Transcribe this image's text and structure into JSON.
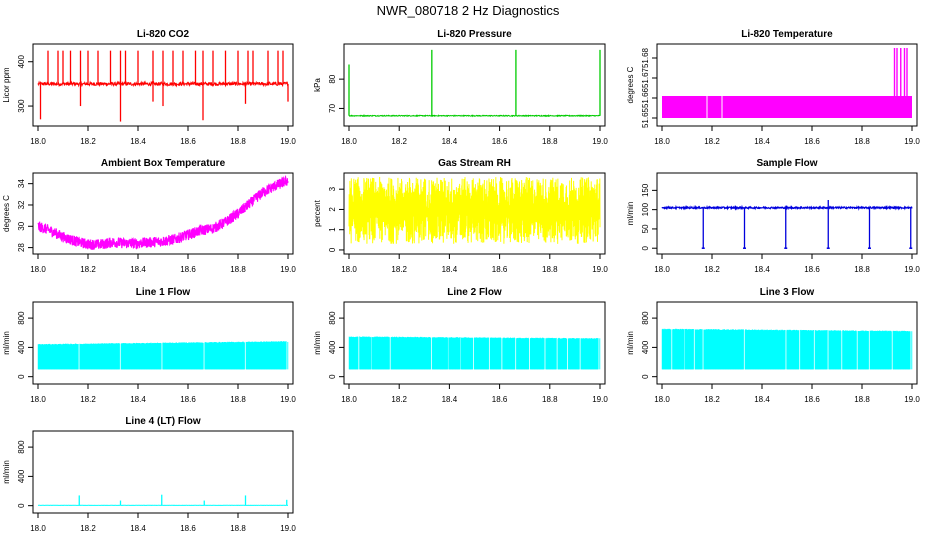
{
  "figure_title": "NWR_080718  2 Hz Diagnostics",
  "chart_data": [
    {
      "id": "li820-co2",
      "type": "line",
      "title": "Li-820 CO2",
      "ylabel": "Licor ppm",
      "color": "#ff0000",
      "xlim": [
        18.0,
        19.0
      ],
      "ylim": [
        255,
        440
      ],
      "xticks": [
        "18.0",
        "18.2",
        "18.4",
        "18.6",
        "18.8",
        "19.0"
      ],
      "yticks": [
        {
          "v": 300,
          "label": "300"
        },
        {
          "v": 400,
          "label": "400"
        }
      ],
      "summary": "Noisy baseline near 350 ppm with frequent spikes up to about 425 and drops to about 260",
      "baseline": 350,
      "noise": 4,
      "spike_x": [
        18.04,
        18.08,
        18.1,
        18.13,
        18.17,
        18.2,
        18.24,
        18.29,
        18.33,
        18.35,
        18.4,
        18.46,
        18.5,
        18.54,
        18.58,
        18.63,
        18.66,
        18.7,
        18.75,
        18.8,
        18.84,
        18.86,
        18.92,
        18.96,
        18.98
      ],
      "spike_hi": 425,
      "drop_x": [
        18.01,
        18.17,
        18.33,
        18.46,
        18.5,
        18.66,
        18.83,
        19.0
      ],
      "drop_lo": [
        270,
        300,
        265,
        310,
        300,
        268,
        305,
        310
      ]
    },
    {
      "id": "li820-pressure",
      "type": "line",
      "title": "Li-820 Pressure",
      "ylabel": "kPa",
      "color": "#00cc00",
      "xlim": [
        18.0,
        19.0
      ],
      "ylim": [
        64,
        92
      ],
      "xticks": [
        "18.0",
        "18.2",
        "18.4",
        "18.6",
        "18.8",
        "19.0"
      ],
      "yticks": [
        {
          "v": 70,
          "label": "70"
        },
        {
          "v": 80,
          "label": "80"
        }
      ],
      "summary": "Flat near 67.5 kPa with spikes to about 90 kPa",
      "baseline": 67.5,
      "noise": 0.15,
      "spike_x": [
        18.0,
        18.33,
        18.665,
        19.0
      ],
      "spike_hi": [
        85,
        90,
        90,
        90
      ]
    },
    {
      "id": "li820-temperature",
      "type": "area",
      "title": "Li-820 Temperature",
      "ylabel": "degrees C",
      "color": "#ff00ff",
      "xlim": [
        18.0,
        19.0
      ],
      "ylim": [
        51.646,
        51.687
      ],
      "xticks": [
        "18.0",
        "18.2",
        "18.4",
        "18.6",
        "18.8",
        "19.0"
      ],
      "yticks": [
        {
          "v": 51.65,
          "label": "51.65"
        },
        {
          "v": 51.66,
          "label": "51.66"
        },
        {
          "v": 51.67,
          "label": "51.67"
        },
        {
          "v": 51.68,
          "label": "51.68"
        }
      ],
      "summary": "Filled band between 51.65 and 51.661 with brief excursions to 51.685 near 18.93-18.98",
      "band_lo": 51.65,
      "band_hi": 51.661,
      "gaps": [
        18.18,
        18.24
      ],
      "spike_x": [
        18.93,
        18.94,
        18.955,
        18.97,
        18.98
      ],
      "spike_hi": 51.685
    },
    {
      "id": "ambient-box-temperature",
      "type": "line",
      "title": "Ambient Box Temperature",
      "ylabel": "degrees C",
      "color": "#ff00ff",
      "xlim": [
        18.0,
        19.0
      ],
      "ylim": [
        27.4,
        35.0
      ],
      "xticks": [
        "18.0",
        "18.2",
        "18.4",
        "18.6",
        "18.8",
        "19.0"
      ],
      "yticks": [
        {
          "v": 28,
          "label": "28"
        },
        {
          "v": 30,
          "label": "30"
        },
        {
          "v": 32,
          "label": "32"
        },
        {
          "v": 34,
          "label": "34"
        }
      ],
      "summary": "Dips from 30 to about 28.3, rises to 34.3 by 19.0",
      "x": [
        18.0,
        18.05,
        18.1,
        18.15,
        18.2,
        18.25,
        18.3,
        18.35,
        18.4,
        18.45,
        18.5,
        18.55,
        18.6,
        18.65,
        18.7,
        18.75,
        18.8,
        18.85,
        18.9,
        18.95,
        19.0
      ],
      "y": [
        30.0,
        29.6,
        29.0,
        28.6,
        28.3,
        28.3,
        28.5,
        28.4,
        28.4,
        28.5,
        28.6,
        28.8,
        29.2,
        29.6,
        29.8,
        30.4,
        31.2,
        32.2,
        33.2,
        33.8,
        34.3
      ],
      "noise": 0.5
    },
    {
      "id": "gas-stream-rh",
      "type": "area",
      "title": "Gas Stream RH",
      "ylabel": "percent",
      "color": "#ffff00",
      "xlim": [
        18.0,
        19.0
      ],
      "ylim": [
        -0.2,
        3.8
      ],
      "xticks": [
        "18.0",
        "18.2",
        "18.4",
        "18.6",
        "18.8",
        "19.0"
      ],
      "yticks": [
        {
          "v": 0,
          "label": "0"
        },
        {
          "v": 1,
          "label": "1"
        },
        {
          "v": 2,
          "label": "2"
        },
        {
          "v": 3,
          "label": "3"
        }
      ],
      "summary": "Dense noisy band roughly 0.5 to 3.5 percent centered near 2",
      "center": 2.0,
      "noise_min": 0.3,
      "noise_max": 3.6
    },
    {
      "id": "sample-flow",
      "type": "line",
      "title": "Sample Flow",
      "ylabel": "ml/min",
      "color": "#0000dd",
      "xlim": [
        18.0,
        19.0
      ],
      "ylim": [
        -15,
        195
      ],
      "xticks": [
        "18.0",
        "18.2",
        "18.4",
        "18.6",
        "18.8",
        "19.0"
      ],
      "yticks": [
        {
          "v": 0,
          "label": "0"
        },
        {
          "v": 50,
          "label": "50"
        },
        {
          "v": 100,
          "label": "100"
        },
        {
          "v": 150,
          "label": "150"
        }
      ],
      "summary": "Steady near 105 ml/min with drops to 0 every ~0.167 h",
      "baseline": 105,
      "noise": 2,
      "drop_x": [
        18.165,
        18.33,
        18.495,
        18.665,
        18.83,
        18.995
      ],
      "drop_lo": 0,
      "spike_x": [
        18.665
      ],
      "spike_hi": 125
    },
    {
      "id": "line-1-flow",
      "type": "area",
      "title": "Line 1 Flow",
      "ylabel": "ml/min",
      "color": "#00ffff",
      "xlim": [
        18.0,
        19.0
      ],
      "ylim": [
        -100,
        1020
      ],
      "xticks": [
        "18.0",
        "18.2",
        "18.4",
        "18.6",
        "18.8",
        "19.0"
      ],
      "yticks": [
        {
          "v": 0,
          "label": "0"
        },
        {
          "v": 400,
          "label": "400"
        },
        {
          "v": 800,
          "label": "800"
        }
      ],
      "summary": "Band 100 to 450 ml/min, top rising to 480 by 19.0, gaps each cycle",
      "band_lo": 100,
      "band_hi_start": 440,
      "band_hi_end": 480,
      "gaps": [
        18.165,
        18.33,
        18.495,
        18.665,
        18.83,
        18.995
      ]
    },
    {
      "id": "line-2-flow",
      "type": "area",
      "title": "Line 2 Flow",
      "ylabel": "ml/min",
      "color": "#00ffff",
      "xlim": [
        18.0,
        19.0
      ],
      "ylim": [
        -100,
        1020
      ],
      "xticks": [
        "18.0",
        "18.2",
        "18.4",
        "18.6",
        "18.8",
        "19.0"
      ],
      "yticks": [
        {
          "v": 0,
          "label": "0"
        },
        {
          "v": 400,
          "label": "400"
        },
        {
          "v": 800,
          "label": "800"
        }
      ],
      "summary": "Band 100 to about 540 ml/min with frequent gaps",
      "band_lo": 100,
      "band_hi_start": 545,
      "band_hi_end": 520,
      "gaps": [
        18.04,
        18.09,
        18.165,
        18.33,
        18.395,
        18.445,
        18.495,
        18.56,
        18.61,
        18.665,
        18.72,
        18.78,
        18.83,
        18.87,
        18.92,
        18.995
      ]
    },
    {
      "id": "line-3-flow",
      "type": "area",
      "title": "Line 3 Flow",
      "ylabel": "ml/min",
      "color": "#00ffff",
      "xlim": [
        18.0,
        19.0
      ],
      "ylim": [
        -100,
        1020
      ],
      "xticks": [
        "18.0",
        "18.2",
        "18.4",
        "18.6",
        "18.8",
        "19.0"
      ],
      "yticks": [
        {
          "v": 0,
          "label": "0"
        },
        {
          "v": 400,
          "label": "400"
        },
        {
          "v": 800,
          "label": "800"
        }
      ],
      "summary": "Band 100 to about 630 ml/min with frequent gaps",
      "band_lo": 100,
      "band_hi_start": 650,
      "band_hi_end": 620,
      "gaps": [
        18.04,
        18.09,
        18.13,
        18.165,
        18.33,
        18.495,
        18.55,
        18.61,
        18.665,
        18.72,
        18.78,
        18.83,
        18.92,
        18.995
      ]
    },
    {
      "id": "line-4-lt-flow",
      "type": "line",
      "title": "Line 4 (LT) Flow",
      "ylabel": "ml/min",
      "color": "#00ffff",
      "xlim": [
        18.0,
        19.0
      ],
      "ylim": [
        -100,
        1020
      ],
      "xticks": [
        "18.0",
        "18.2",
        "18.4",
        "18.6",
        "18.8",
        "19.0"
      ],
      "yticks": [
        {
          "v": 0,
          "label": "0"
        },
        {
          "v": 400,
          "label": "400"
        },
        {
          "v": 800,
          "label": "800"
        }
      ],
      "summary": "Flat near 5 ml/min with small spikes each cycle",
      "baseline": 5,
      "noise": 1,
      "spike_x": [
        18.165,
        18.33,
        18.495,
        18.665,
        18.83,
        18.995
      ],
      "spike_hi": [
        140,
        70,
        150,
        70,
        140,
        80
      ]
    }
  ]
}
